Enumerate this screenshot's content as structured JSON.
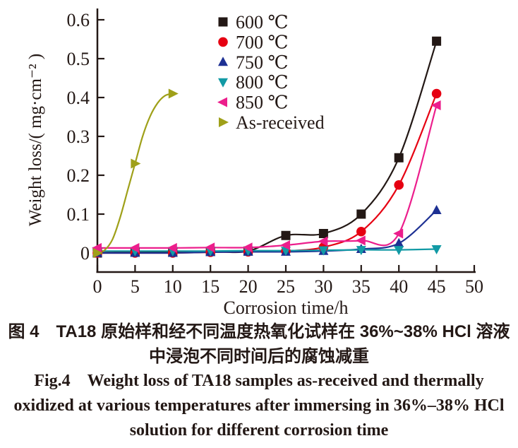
{
  "figure": {
    "caption": {
      "zh_line1": "图 4　TA18 原始样和经不同温度热氧化试样在 36%~38% HCl 溶液",
      "zh_line2": "中浸泡不同时间后的腐蚀减重",
      "en_line1": "Fig.4　Weight loss of TA18 samples as-received and thermally",
      "en_line2": "oxidized at various temperatures after immersing in 36%–38% HCl",
      "en_line3": "solution for different corrosion time"
    }
  },
  "chart_data": {
    "type": "scatter",
    "title": "",
    "xlabel": "Corrosion time/h",
    "ylabel": "Weight loss/( mg·cm⁻² )",
    "xlim": [
      0,
      50
    ],
    "ylim": [
      0,
      0.6
    ],
    "xticks": [
      0,
      5,
      10,
      15,
      20,
      25,
      30,
      35,
      40,
      45,
      50
    ],
    "yticks": [
      0,
      0.1,
      0.2,
      0.3,
      0.4,
      0.5,
      0.6
    ],
    "grid": false,
    "legend_position": "upper-left-inside",
    "axis_color": "#231815",
    "series": [
      {
        "name": "600 ℃",
        "marker": "square",
        "color": "#231815",
        "x": [
          0,
          5,
          10,
          15,
          20,
          25,
          30,
          35,
          40,
          45
        ],
        "y": [
          0,
          0.003,
          0.003,
          0.004,
          0.005,
          0.045,
          0.05,
          0.1,
          0.245,
          0.545
        ]
      },
      {
        "name": "700 ℃",
        "marker": "circle",
        "color": "#E60012",
        "x": [
          0,
          5,
          10,
          15,
          20,
          25,
          30,
          35,
          40,
          45
        ],
        "y": [
          0,
          0,
          0,
          0.002,
          0.003,
          0.005,
          0.015,
          0.055,
          0.175,
          0.41
        ]
      },
      {
        "name": "750 ℃",
        "marker": "triangle-up",
        "color": "#1D3093",
        "x": [
          0,
          5,
          10,
          15,
          20,
          25,
          30,
          35,
          40,
          45
        ],
        "y": [
          0,
          0,
          0,
          0.002,
          0.003,
          0.003,
          0.005,
          0.01,
          0.025,
          0.11
        ]
      },
      {
        "name": "800 ℃",
        "marker": "triangle-down",
        "color": "#129AA5",
        "x": [
          0,
          5,
          10,
          15,
          20,
          25,
          30,
          35,
          40,
          45
        ],
        "y": [
          0.005,
          0.005,
          0.005,
          0.005,
          0.006,
          0.006,
          0.007,
          0.008,
          0.008,
          0.01
        ]
      },
      {
        "name": "850 ℃",
        "marker": "triangle-left",
        "color": "#EC1E8C",
        "x": [
          0,
          5,
          10,
          15,
          20,
          25,
          30,
          35,
          40,
          45
        ],
        "y": [
          0.013,
          0.013,
          0.013,
          0.014,
          0.014,
          0.02,
          0.03,
          0.032,
          0.05,
          0.38
        ]
      },
      {
        "name": "As-received",
        "marker": "triangle-right",
        "color": "#9FA019",
        "x": [
          0,
          5,
          10
        ],
        "y": [
          0,
          0.23,
          0.41
        ],
        "fit": [
          [
            0,
            0
          ],
          [
            1,
            0.008
          ],
          [
            2,
            0.035
          ],
          [
            3,
            0.09
          ],
          [
            4,
            0.16
          ],
          [
            5,
            0.23
          ],
          [
            6,
            0.3
          ],
          [
            7,
            0.352
          ],
          [
            8,
            0.386
          ],
          [
            9,
            0.405
          ],
          [
            10,
            0.41
          ]
        ]
      }
    ]
  }
}
